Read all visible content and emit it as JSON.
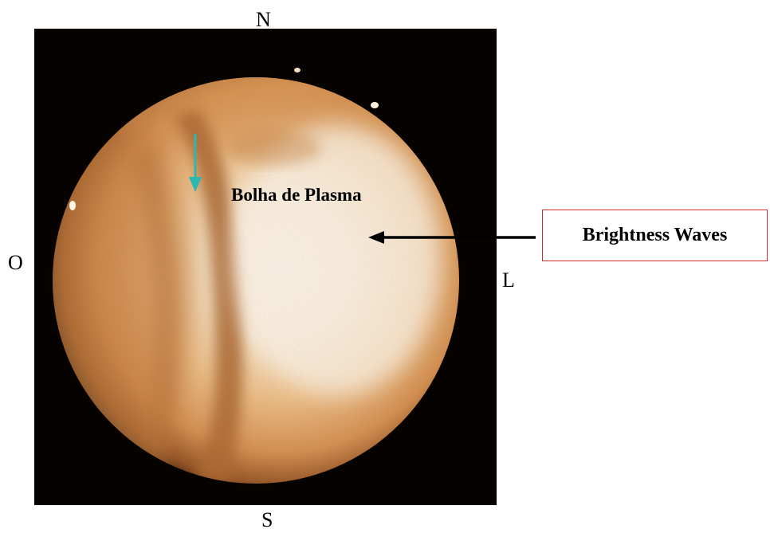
{
  "compass": {
    "north": "N",
    "south": "S",
    "west": "O",
    "east": "L"
  },
  "image": {
    "subject": "all-sky-airglow-image",
    "colors": {
      "background": "#000000",
      "glow_core": "#fdf6ea",
      "glow_mid": "#e8b377",
      "glow_edge": "#8a4a1d",
      "depletion_band": "#b07038",
      "marker_arrow": "#2bb8b0"
    }
  },
  "annotations": {
    "bubble_label": "Bolha de Plasma",
    "callout_label": "Brightness Waves",
    "callout_border_color": "#d42a2a",
    "marker_icon": "down-arrow-icon",
    "pointer_icon": "left-arrow-icon"
  }
}
